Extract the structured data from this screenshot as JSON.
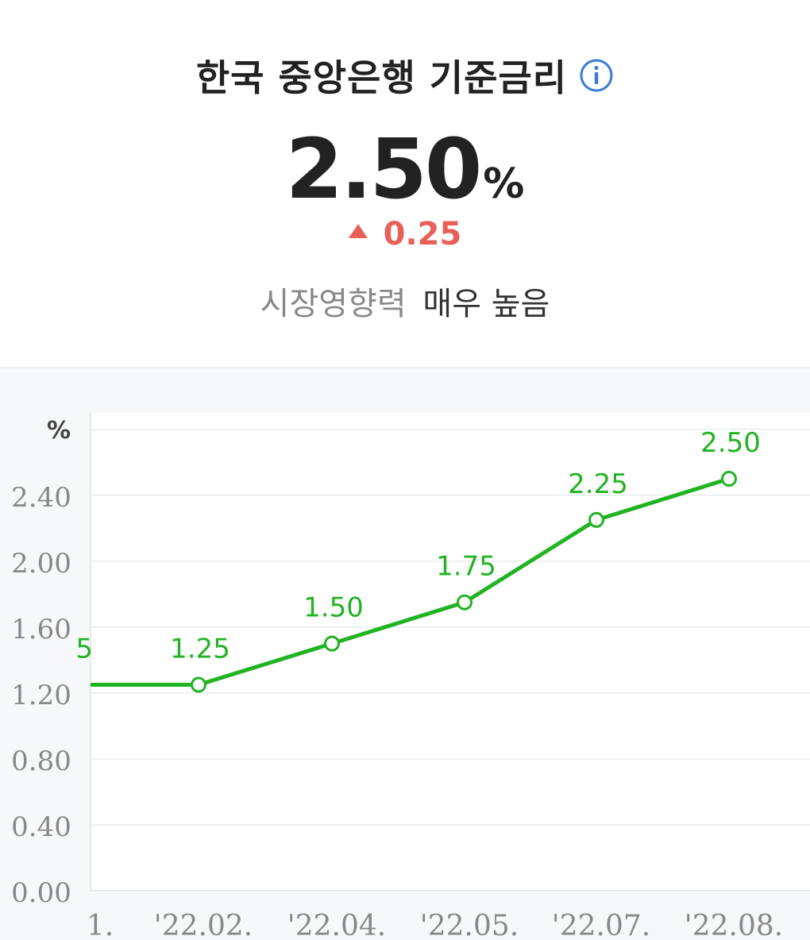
{
  "header": {
    "title": "한국 중앙은행 기준금리",
    "info_icon": "info-circle-icon",
    "rate_value": "2.50",
    "rate_unit": "%",
    "change_value": "0.25",
    "change_icon": "triangle-up-icon",
    "impact_label": "시장영향력",
    "impact_value": "매우 높음"
  },
  "colors": {
    "line": "#22b322",
    "change_up": "#e8605a",
    "info": "#3a7bd5"
  },
  "chart_data": {
    "type": "line",
    "y_unit_label": "%",
    "ylim": [
      0,
      2.9
    ],
    "yticks": [
      "0.00",
      "0.40",
      "0.80",
      "1.20",
      "1.60",
      "2.00",
      "2.40"
    ],
    "ytick_values": [
      0,
      0.4,
      0.8,
      1.2,
      1.6,
      2.0,
      2.4
    ],
    "grid": true,
    "x_labels": [
      "1.",
      "'22.02.",
      "'22.04.",
      "'22.05.",
      "'22.07.",
      "'22.08."
    ],
    "partial_left_label": "5",
    "series": [
      {
        "values": [
          1.25,
          1.25,
          1.5,
          1.75,
          2.25,
          2.5
        ],
        "labels": [
          "",
          "1.25",
          "1.50",
          "1.75",
          "2.25",
          "2.50"
        ]
      }
    ]
  }
}
